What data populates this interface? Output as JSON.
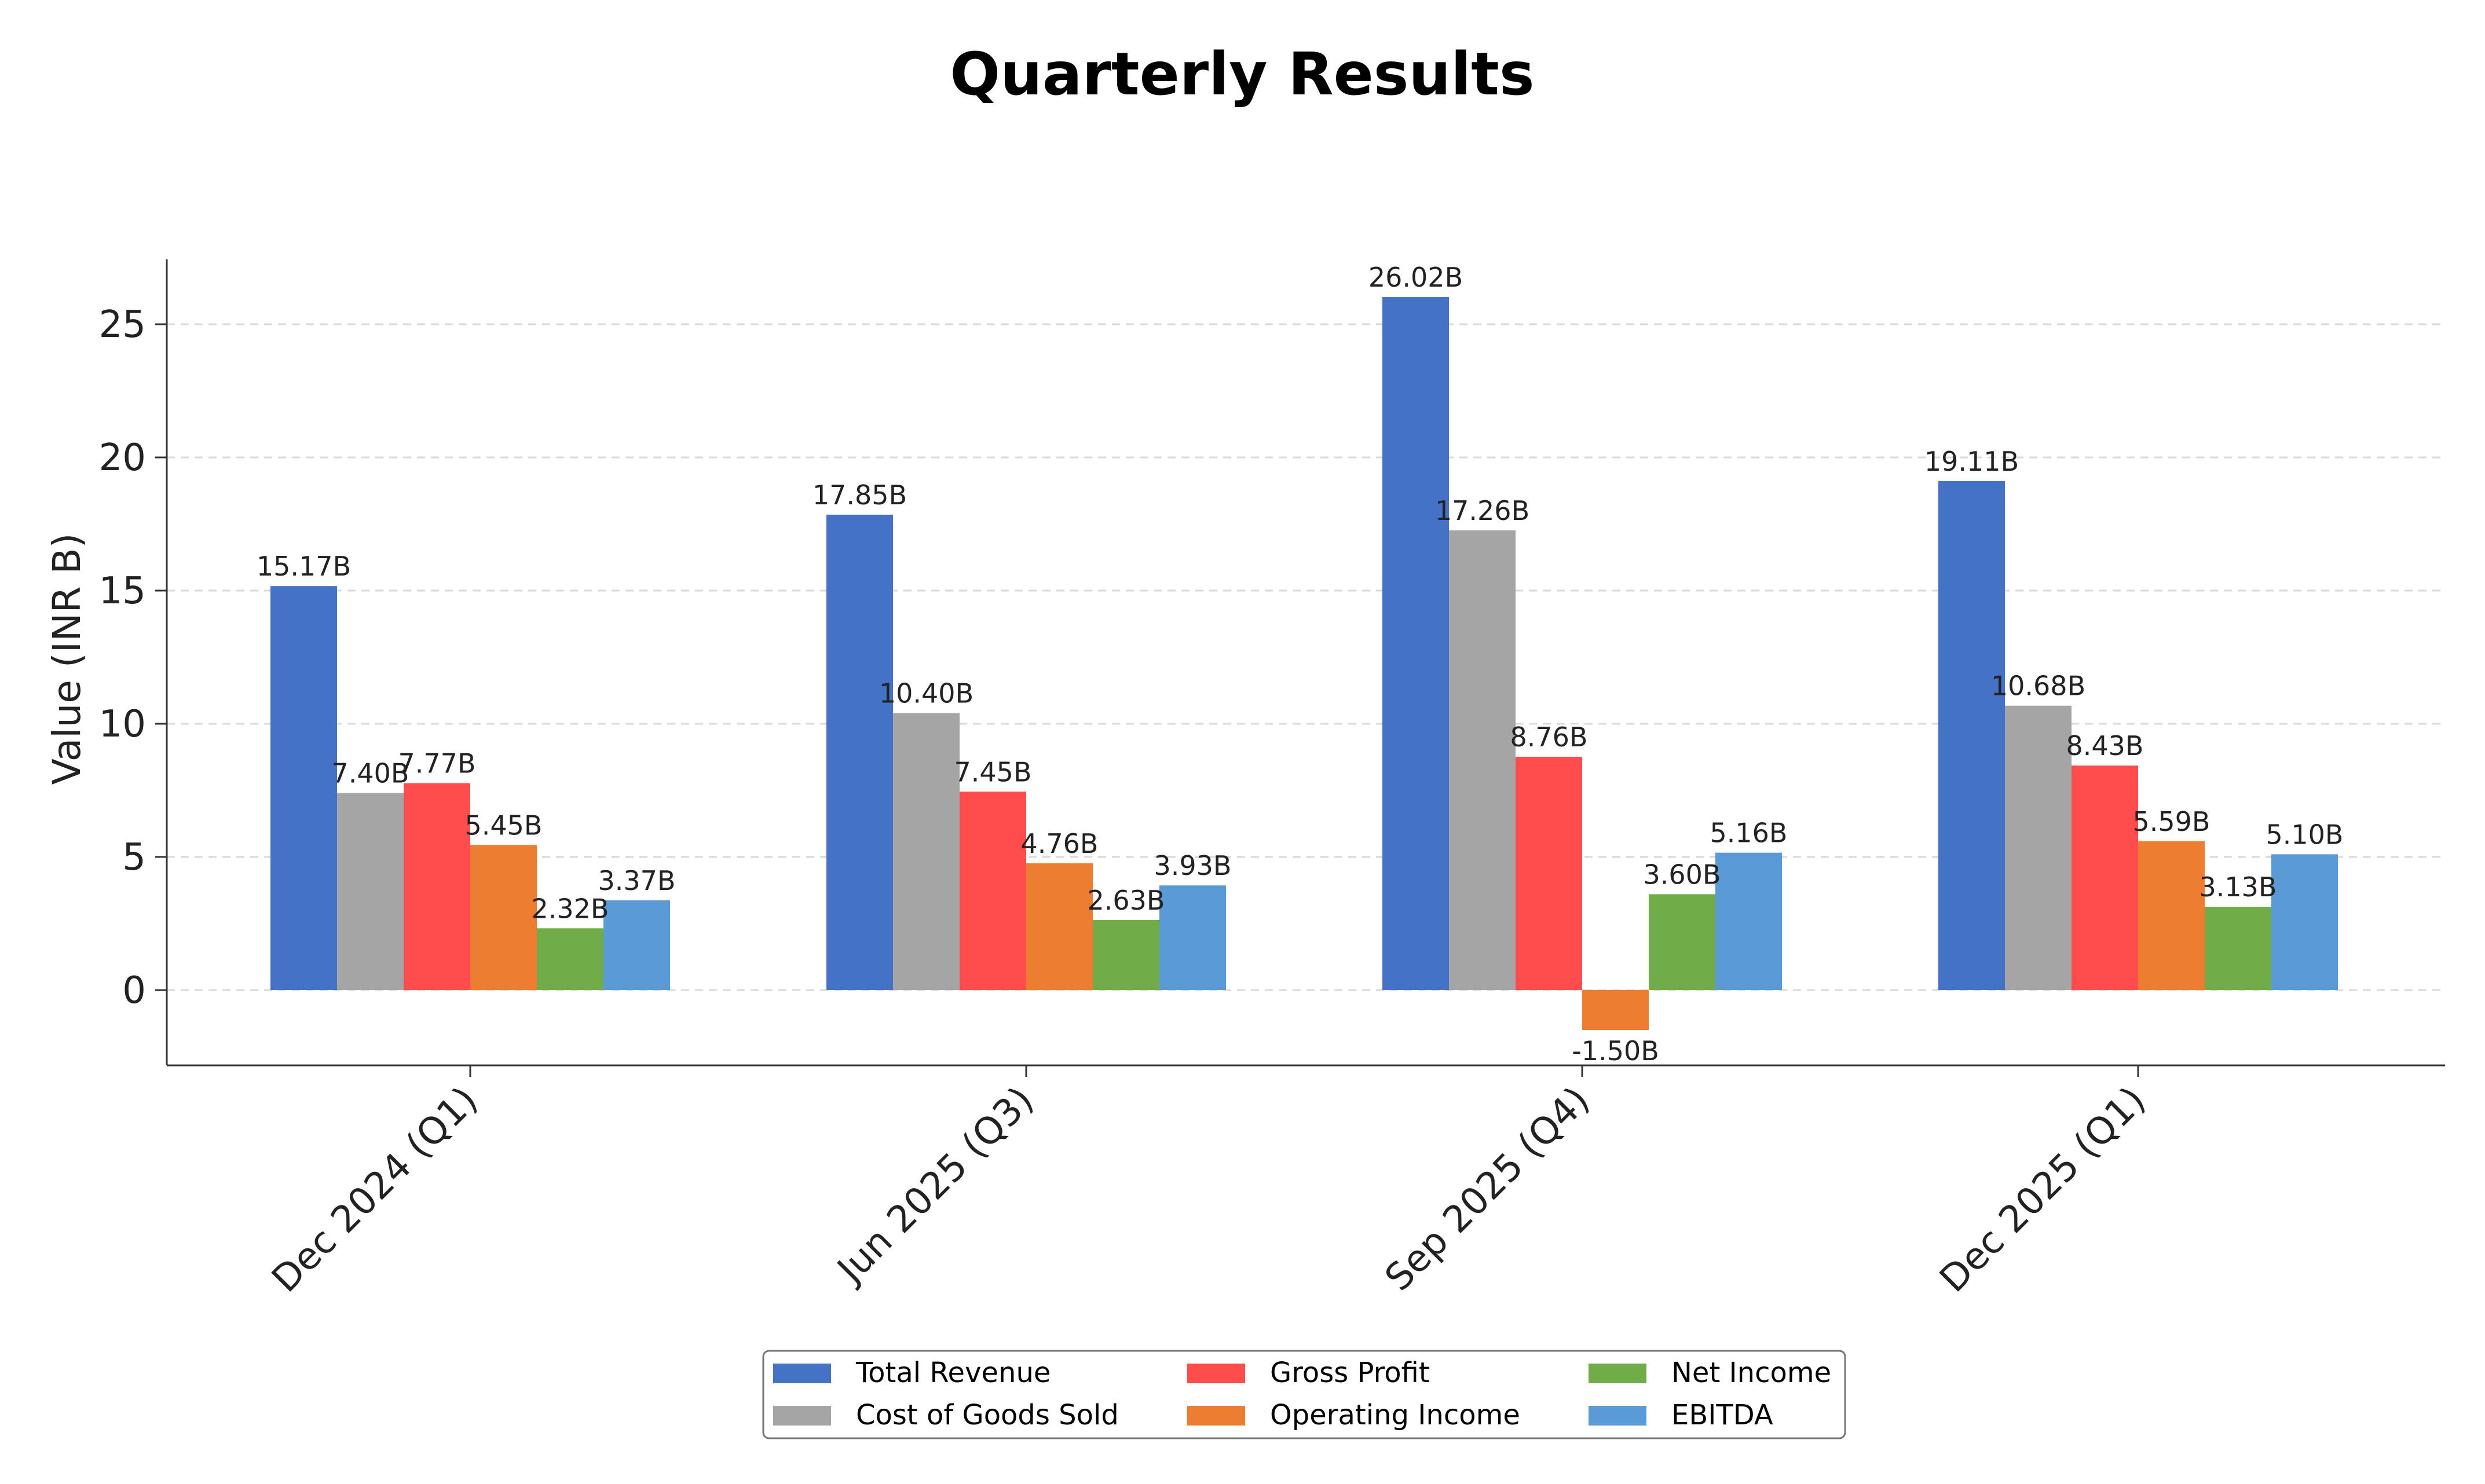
{
  "chart_data": {
    "type": "bar",
    "title": "Quarterly Results",
    "xlabel": "",
    "ylabel": "Value (INR B)",
    "categories": [
      "Dec 2024 (Q1)",
      "Jun 2025 (Q3)",
      "Sep 2025 (Q4)",
      "Dec 2025 (Q1)"
    ],
    "series": [
      {
        "name": "Total Revenue",
        "color": "#4472C4",
        "values": [
          15.17,
          17.85,
          26.02,
          19.11
        ],
        "labels": [
          "15.17B",
          "17.85B",
          "26.02B",
          "19.11B"
        ]
      },
      {
        "name": "Cost of Goods Sold",
        "color": "#A5A5A5",
        "values": [
          7.4,
          10.4,
          17.26,
          10.68
        ],
        "labels": [
          "7.40B",
          "10.40B",
          "17.26B",
          "10.68B"
        ]
      },
      {
        "name": "Gross Profit",
        "color": "#FF4C4C",
        "values": [
          7.77,
          7.45,
          8.76,
          8.43
        ],
        "labels": [
          "7.77B",
          "7.45B",
          "8.76B",
          "8.43B"
        ]
      },
      {
        "name": "Operating Income",
        "color": "#ED7D31",
        "values": [
          5.45,
          4.76,
          -1.5,
          5.59
        ],
        "labels": [
          "5.45B",
          "4.76B",
          "-1.50B",
          "5.59B"
        ]
      },
      {
        "name": "Net Income",
        "color": "#70AD47",
        "values": [
          2.32,
          2.63,
          3.6,
          3.13
        ],
        "labels": [
          "2.32B",
          "2.63B",
          "3.60B",
          "3.13B"
        ]
      },
      {
        "name": "EBITDA",
        "color": "#5B9BD5",
        "values": [
          3.37,
          3.93,
          5.16,
          5.1
        ],
        "labels": [
          "3.37B",
          "3.93B",
          "5.16B",
          "5.10B"
        ]
      }
    ],
    "y_ticks": [
      "0",
      "5",
      "10",
      "15",
      "20",
      "25"
    ],
    "ylim": [
      -2.8,
      27.4
    ],
    "grid": "horizontal dashed",
    "legend_position": "bottom-center"
  }
}
